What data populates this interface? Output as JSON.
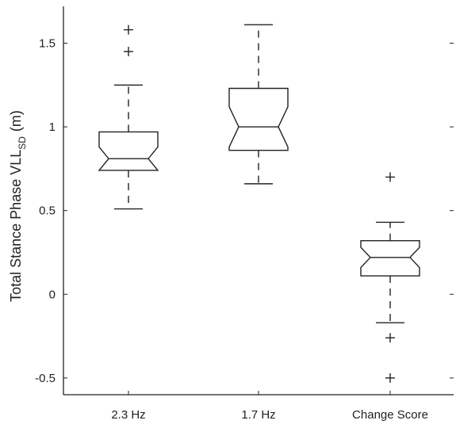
{
  "chart_data": {
    "type": "boxplot",
    "notched": true,
    "ylabel": "Total Stance Phase VLL",
    "ylabel_subscript": "SD",
    "ylabel_unit": "(m)",
    "ylim": [
      -0.6,
      1.72
    ],
    "yticks": [
      -0.5,
      0,
      0.5,
      1,
      1.5
    ],
    "ytick_labels": [
      "-0.5",
      "0",
      "0.5",
      "1",
      "1.5"
    ],
    "categories": [
      "2.3 Hz",
      "1.7 Hz",
      "Change Score"
    ],
    "boxes": [
      {
        "category": "2.3 Hz",
        "whisker_low": 0.51,
        "q1": 0.74,
        "median": 0.81,
        "q3": 0.97,
        "whisker_high": 1.25,
        "notch_low": 0.74,
        "notch_high": 0.88,
        "outliers": [
          1.45,
          1.58
        ]
      },
      {
        "category": "1.7 Hz",
        "whisker_low": 0.66,
        "q1": 0.86,
        "median": 1.0,
        "q3": 1.23,
        "whisker_high": 1.61,
        "notch_low": 0.88,
        "notch_high": 1.12,
        "outliers": []
      },
      {
        "category": "Change Score",
        "whisker_low": -0.17,
        "q1": 0.11,
        "median": 0.22,
        "q3": 0.32,
        "whisker_high": 0.43,
        "notch_low": 0.16,
        "notch_high": 0.28,
        "outliers": [
          0.7,
          -0.26,
          -0.5
        ]
      }
    ],
    "colors": {
      "box": "#222222",
      "whisker": "#222222",
      "axis": "#222222",
      "background": "#ffffff"
    }
  }
}
